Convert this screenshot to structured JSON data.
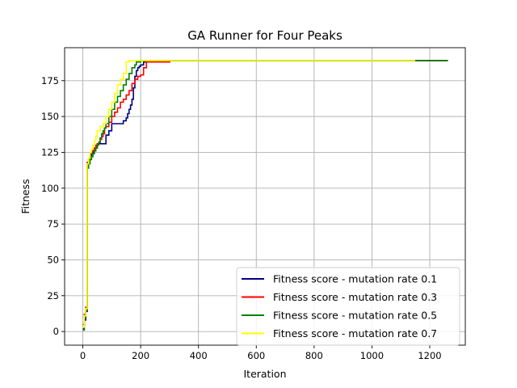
{
  "chart_data": {
    "type": "line",
    "title": "GA Runner for Four Peaks",
    "xlabel": "Iteration",
    "ylabel": "Fitness",
    "xlim": [
      -63,
      1323
    ],
    "ylim": [
      -9.5,
      198
    ],
    "xticks": [
      0,
      200,
      400,
      600,
      800,
      1000,
      1200
    ],
    "yticks": [
      0,
      25,
      50,
      75,
      100,
      125,
      150,
      175
    ],
    "grid": true,
    "legend_position": "lower-right",
    "series": [
      {
        "name": "Fitness score - mutation rate 0.1",
        "color": "#000080",
        "x": [
          0,
          5,
          10,
          15,
          20,
          25,
          30,
          35,
          40,
          45,
          50,
          55,
          60,
          70,
          80,
          90,
          100,
          110,
          120,
          130,
          140,
          150,
          155,
          160,
          165,
          170,
          175,
          180,
          185,
          190,
          195,
          200,
          210,
          220,
          230,
          240,
          250,
          260,
          265,
          300,
          400,
          600,
          800,
          1000,
          1200,
          1263
        ],
        "y": [
          2,
          8,
          14,
          117,
          120,
          122,
          124,
          126,
          128,
          128,
          131,
          131,
          131,
          131,
          137,
          140,
          145,
          145,
          145,
          145,
          147,
          149,
          152,
          155,
          158,
          162,
          170,
          178,
          182,
          184,
          185,
          186,
          188,
          188,
          188,
          188,
          188,
          188,
          188,
          189,
          189,
          189,
          189,
          189,
          189,
          189
        ]
      },
      {
        "name": "Fitness score - mutation rate 0.3",
        "color": "#ff0000",
        "x": [
          0,
          5,
          10,
          15,
          20,
          25,
          30,
          35,
          40,
          45,
          50,
          55,
          60,
          65,
          70,
          75,
          80,
          90,
          100,
          110,
          120,
          130,
          140,
          150,
          160,
          170,
          180,
          190,
          200,
          210,
          220,
          230,
          240,
          250,
          300,
          400,
          600,
          800,
          1000,
          1200,
          1263
        ],
        "y": [
          5,
          12,
          17,
          118,
          120,
          124,
          126,
          127,
          128,
          130,
          131,
          132,
          134,
          136,
          138,
          142,
          143,
          146,
          150,
          153,
          156,
          160,
          162,
          165,
          168,
          173,
          176,
          178,
          179,
          184,
          188,
          188,
          188,
          188,
          189,
          189,
          189,
          189,
          189,
          189,
          189
        ]
      },
      {
        "name": "Fitness score - mutation rate 0.5",
        "color": "#008000",
        "x": [
          0,
          5,
          10,
          15,
          20,
          25,
          30,
          35,
          40,
          45,
          50,
          55,
          60,
          65,
          70,
          75,
          80,
          90,
          100,
          110,
          120,
          130,
          140,
          150,
          160,
          170,
          180,
          185,
          190,
          200,
          300,
          400,
          600,
          800,
          1000,
          1150,
          1200,
          1263
        ],
        "y": [
          1,
          10,
          15,
          114,
          117,
          120,
          122,
          124,
          126,
          128,
          130,
          132,
          135,
          138,
          140,
          142,
          145,
          150,
          155,
          160,
          164,
          168,
          172,
          176,
          180,
          184,
          186,
          188,
          188,
          189,
          189,
          189,
          189,
          189,
          189,
          189,
          189,
          189
        ]
      },
      {
        "name": "Fitness score - mutation rate 0.7",
        "color": "#ffff00",
        "x": [
          0,
          5,
          10,
          15,
          20,
          25,
          30,
          35,
          40,
          45,
          50,
          60,
          70,
          80,
          90,
          100,
          110,
          120,
          130,
          140,
          150,
          160,
          200,
          400,
          600,
          800,
          1000,
          1150
        ],
        "y": [
          3,
          11,
          16,
          117,
          121,
          125,
          127,
          130,
          133,
          136,
          140,
          143,
          145,
          150,
          155,
          160,
          166,
          172,
          176,
          180,
          188,
          189,
          189,
          189,
          189,
          189,
          189,
          189
        ]
      }
    ]
  }
}
